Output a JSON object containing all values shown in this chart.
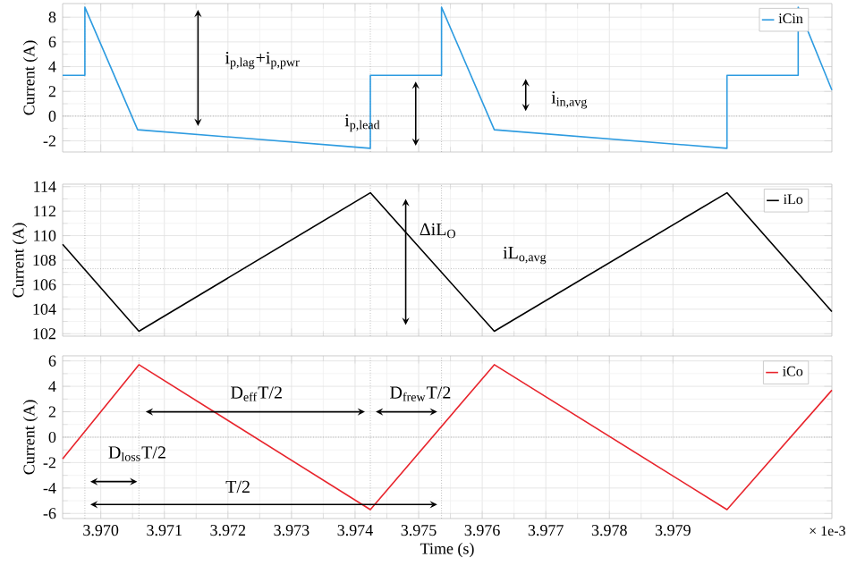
{
  "chart_data": [
    {
      "type": "line",
      "ylabel": "Current (A)",
      "xlim": [
        3.9694,
        3.9815
      ],
      "ylim": [
        -2.9,
        9.1
      ],
      "tick_labels": "y",
      "grid": true,
      "legend": "top right",
      "marker": "none",
      "xticks": [
        3.97,
        3.971,
        3.972,
        3.973,
        3.974,
        3.975,
        3.976,
        3.977,
        3.978,
        3.979
      ],
      "yticks": [
        -2,
        0,
        2,
        4,
        6,
        8
      ],
      "series": [
        {
          "name": "iCin",
          "color": "#2d9be0",
          "x": [
            3.9694,
            3.96975,
            3.96975,
            3.97058,
            3.97424,
            3.97424,
            3.97536,
            3.97536,
            3.97619,
            3.97985,
            3.97985,
            3.98097,
            3.98097,
            3.9815
          ],
          "values": [
            3.3,
            3.3,
            8.8,
            -1.1,
            -2.6,
            3.3,
            3.3,
            8.8,
            -1.1,
            -2.6,
            3.3,
            3.3,
            8.8,
            2.1
          ]
        }
      ],
      "ref_lines": [
        {
          "axis": "y",
          "value": 0
        },
        {
          "axis": "x",
          "value": 3.96975
        },
        {
          "axis": "x",
          "value": 3.97424
        },
        {
          "axis": "x",
          "value": 3.97536
        }
      ],
      "annotations": [
        "i$_{p,lag}$+i$_{p,pwr}$",
        "i$_{p,lead}$",
        "i$_{in,avg}$"
      ]
    },
    {
      "type": "line",
      "ylabel": "Current (A)",
      "xlim": [
        3.9694,
        3.9815
      ],
      "ylim": [
        101.8,
        114.2
      ],
      "tick_labels": "y",
      "grid": true,
      "legend": "top right",
      "marker": "none",
      "xticks": [
        3.97,
        3.971,
        3.972,
        3.973,
        3.974,
        3.975,
        3.976,
        3.977,
        3.978,
        3.979
      ],
      "yticks": [
        102,
        104,
        106,
        108,
        110,
        112,
        114
      ],
      "series": [
        {
          "name": "iLo",
          "color": "#000000",
          "x": [
            3.9694,
            3.9706,
            3.97424,
            3.97619,
            3.97985,
            3.9815
          ],
          "values": [
            109.3,
            102.2,
            113.5,
            102.2,
            113.5,
            103.8
          ]
        }
      ],
      "ref_lines": [
        {
          "axis": "y",
          "value": 107.3
        },
        {
          "axis": "x",
          "value": 3.96975
        },
        {
          "axis": "x",
          "value": 3.9706
        },
        {
          "axis": "x",
          "value": 3.97424
        },
        {
          "axis": "x",
          "value": 3.97536
        }
      ],
      "annotations": [
        "ΔiL$_{O}$",
        "iL$_{o,avg}$"
      ]
    },
    {
      "type": "line",
      "ylabel": "Current (A)",
      "xlabel": "Time (s)",
      "xlim": [
        3.9694,
        3.9815
      ],
      "ylim": [
        -6.4,
        6.4
      ],
      "grid": true,
      "legend": "top right",
      "marker": "none",
      "xticks": [
        {
          "value": 3.97,
          "label": "3.970"
        },
        {
          "value": 3.971,
          "label": "3.971"
        },
        {
          "value": 3.972,
          "label": "3.972"
        },
        {
          "value": 3.973,
          "label": "3.973"
        },
        {
          "value": 3.974,
          "label": "3.974"
        },
        {
          "value": 3.975,
          "label": "3.975"
        },
        {
          "value": 3.976,
          "label": "3.976"
        },
        {
          "value": 3.977,
          "label": "3.977"
        },
        {
          "value": 3.978,
          "label": "3.978"
        },
        {
          "value": 3.979,
          "label": "3.979"
        }
      ],
      "yticks": [
        -6,
        -4,
        -2,
        0,
        2,
        4,
        6
      ],
      "series": [
        {
          "name": "iCo",
          "color": "#e8242c",
          "x": [
            3.9694,
            3.9706,
            3.97424,
            3.97619,
            3.97985,
            3.9815
          ],
          "values": [
            -1.7,
            5.7,
            -5.7,
            5.7,
            -5.7,
            3.7
          ]
        }
      ],
      "ref_lines": [
        {
          "axis": "y",
          "value": 0
        },
        {
          "axis": "x",
          "value": 3.96975
        },
        {
          "axis": "x",
          "value": 3.9706
        },
        {
          "axis": "x",
          "value": 3.97424
        },
        {
          "axis": "x",
          "value": 3.97536
        }
      ],
      "annotations": [
        "D$_{eff}$T/2",
        "D$_{frew}$T/2",
        "D$_{loss}$T/2",
        "T/2",
        "× 1e-3"
      ]
    }
  ]
}
